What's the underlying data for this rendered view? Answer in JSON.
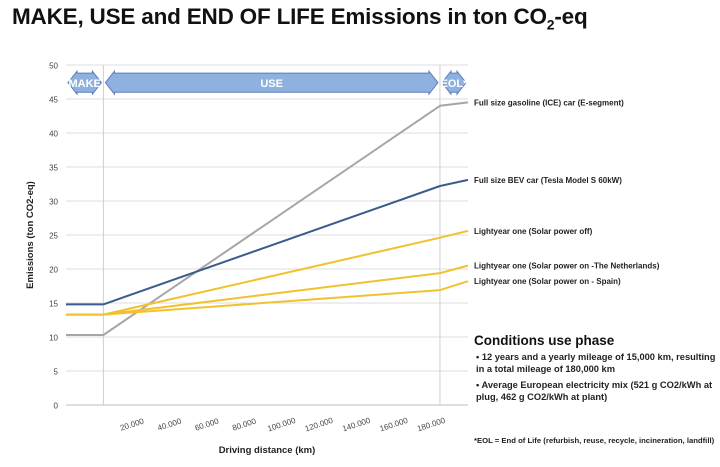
{
  "title_prefix": "MAKE, USE and END OF LIFE Emissions in ton CO",
  "title_sub": "2",
  "title_suffix": "-eq",
  "colors": {
    "gasoline": "#a6a6a6",
    "bev": "#3b5b8c",
    "lightyear": "#f2c12e",
    "phase_arrow": "#8fb1e0",
    "phase_border": "#5a7fb8"
  },
  "chart_data": {
    "type": "line",
    "xlabel": "Driving distance (km)",
    "ylabel": "Emissions (ton CO2-eq)",
    "ylim": [
      0,
      50
    ],
    "xlim": [
      -20000,
      195000
    ],
    "yticks": [
      "0",
      "5",
      "10",
      "15",
      "20",
      "25",
      "30",
      "35",
      "40",
      "45",
      "50"
    ],
    "xticks": [
      {
        "value": 20000,
        "label": "20.000"
      },
      {
        "value": 40000,
        "label": "40.000"
      },
      {
        "value": 60000,
        "label": "60.000"
      },
      {
        "value": 80000,
        "label": "80.000"
      },
      {
        "value": 100000,
        "label": "100.000"
      },
      {
        "value": 120000,
        "label": "120.000"
      },
      {
        "value": 140000,
        "label": "140.000"
      },
      {
        "value": 160000,
        "label": "160.000"
      },
      {
        "value": 180000,
        "label": "180.000"
      }
    ],
    "phase_dividers_km": [
      0,
      180000
    ],
    "phases": [
      {
        "label": "MAKE",
        "from": -20000,
        "to": 0
      },
      {
        "label": "USE",
        "from": 0,
        "to": 180000
      },
      {
        "label": "EOL*",
        "from": 180000,
        "to": 195000
      }
    ],
    "series": [
      {
        "name": "Full size gasoline (ICE) car (E-segment)",
        "color_key": "gasoline",
        "points": [
          [
            -20000,
            10.3
          ],
          [
            0,
            10.3
          ],
          [
            180000,
            44.0
          ],
          [
            195000,
            44.5
          ]
        ]
      },
      {
        "name": "Full size BEV car (Tesla Model S 60kW)",
        "color_key": "bev",
        "points": [
          [
            -20000,
            14.8
          ],
          [
            0,
            14.8
          ],
          [
            180000,
            32.2
          ],
          [
            195000,
            33.1
          ]
        ]
      },
      {
        "name": "Lightyear one (Solar power off)",
        "color_key": "lightyear",
        "points": [
          [
            -20000,
            13.3
          ],
          [
            0,
            13.3
          ],
          [
            180000,
            24.6
          ],
          [
            195000,
            25.6
          ]
        ]
      },
      {
        "name": "Lightyear one (Solar power on -The Netherlands)",
        "color_key": "lightyear",
        "points": [
          [
            -20000,
            13.3
          ],
          [
            0,
            13.3
          ],
          [
            180000,
            19.4
          ],
          [
            195000,
            20.5
          ]
        ]
      },
      {
        "name": "Lightyear one (Solar power on - Spain)",
        "color_key": "lightyear",
        "points": [
          [
            -20000,
            13.3
          ],
          [
            0,
            13.3
          ],
          [
            180000,
            16.9
          ],
          [
            195000,
            18.2
          ]
        ]
      }
    ]
  },
  "conditions": {
    "title": "Conditions use phase",
    "items": [
      "• 12 years and a yearly mileage of 15,000 km, resulting in a total mileage of 180,000 km",
      "• Average European electricity mix (521 g CO2/kWh at plug, 462 g CO2/kWh at plant)"
    ]
  },
  "eol_note": "*EOL = End of Life (refurbish, reuse, recycle, incineration, landfill)"
}
